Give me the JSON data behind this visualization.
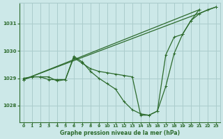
{
  "title": "Graphe pression niveau de la mer (hPa)",
  "bg_color": "#cce8e8",
  "grid_color": "#aacccc",
  "line_color": "#2d6b2d",
  "xmin": -0.5,
  "xmax": 23.5,
  "ymin": 1027.4,
  "ymax": 1031.75,
  "yticks": [
    1028,
    1029,
    1030,
    1031
  ],
  "xticks": [
    0,
    1,
    2,
    3,
    4,
    5,
    6,
    7,
    8,
    9,
    10,
    11,
    12,
    13,
    14,
    15,
    16,
    17,
    18,
    19,
    20,
    21,
    22,
    23
  ],
  "series": [
    {
      "x": [
        0,
        1,
        2,
        3,
        4,
        5,
        6,
        7,
        8,
        9,
        10,
        11,
        12,
        13,
        14,
        15,
        16,
        17,
        18,
        19,
        20,
        21,
        22,
        23
      ],
      "y": [
        1028.95,
        1029.05,
        1029.05,
        1028.95,
        1028.95,
        1028.95,
        1029.75,
        1029.55,
        1029.35,
        1029.25,
        1029.2,
        1029.15,
        1029.1,
        1029.05,
        1027.65,
        1027.65,
        1027.8,
        1029.85,
        1030.5,
        1030.6,
        1031.1,
        1031.35,
        1031.5,
        1031.6
      ],
      "lw": 0.9
    },
    {
      "x": [
        0,
        1,
        2,
        3,
        4,
        5,
        6,
        7,
        8,
        9,
        10,
        11,
        12,
        13,
        14,
        15,
        16,
        17,
        18,
        19,
        20,
        21
      ],
      "y": [
        1029.0,
        1029.05,
        1029.05,
        1029.05,
        1028.9,
        1028.95,
        1029.8,
        1029.6,
        1029.25,
        1029.0,
        1028.8,
        1028.6,
        1028.15,
        1027.85,
        1027.7,
        1027.65,
        1027.8,
        1028.7,
        1029.9,
        1030.6,
        1031.1,
        1031.5
      ],
      "lw": 0.9
    },
    {
      "x": [
        0,
        23
      ],
      "y": [
        1028.95,
        1031.6
      ],
      "lw": 0.9
    },
    {
      "x": [
        0,
        21
      ],
      "y": [
        1028.95,
        1031.5
      ],
      "lw": 0.9
    }
  ]
}
